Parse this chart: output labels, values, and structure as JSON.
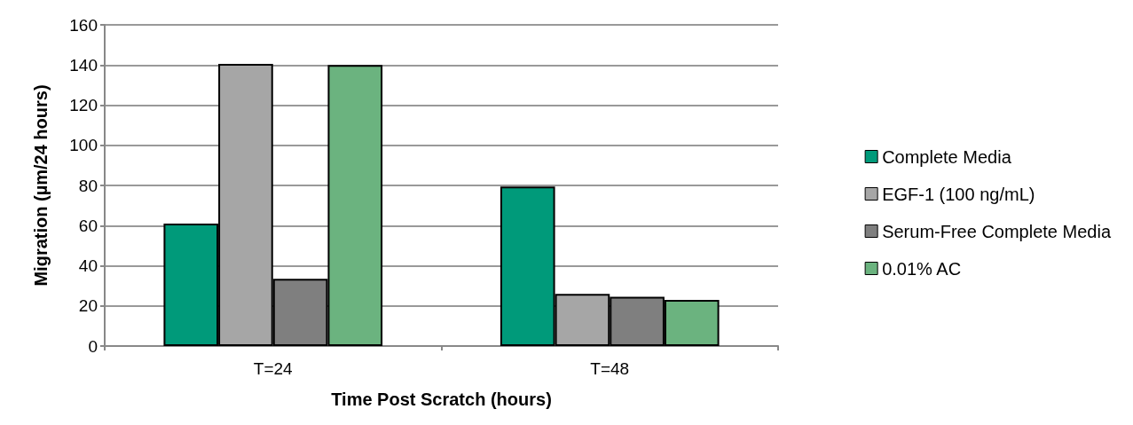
{
  "chart_data": {
    "type": "bar",
    "xlabel": "Time Post Scratch (hours)",
    "ylabel": "Migration (µm/24 hours)",
    "categories": [
      "T=24",
      "T=48"
    ],
    "series": [
      {
        "name": "Complete Media",
        "color": "#009a7a",
        "values": [
          61,
          79.5
        ]
      },
      {
        "name": "EGF-1 (100 ng/mL)",
        "color": "#a6a6a6",
        "values": [
          140.5,
          26
        ]
      },
      {
        "name": "Serum-Free Complete Media",
        "color": "#7f7f7f",
        "values": [
          33.5,
          24.5
        ]
      },
      {
        "name": "0.01% AC",
        "color": "#6bb37f",
        "values": [
          140,
          23
        ]
      }
    ],
    "ylim": [
      0,
      160
    ],
    "yticks": [
      0,
      20,
      40,
      60,
      80,
      100,
      120,
      140,
      160
    ],
    "grid": "y",
    "legend": "right"
  }
}
